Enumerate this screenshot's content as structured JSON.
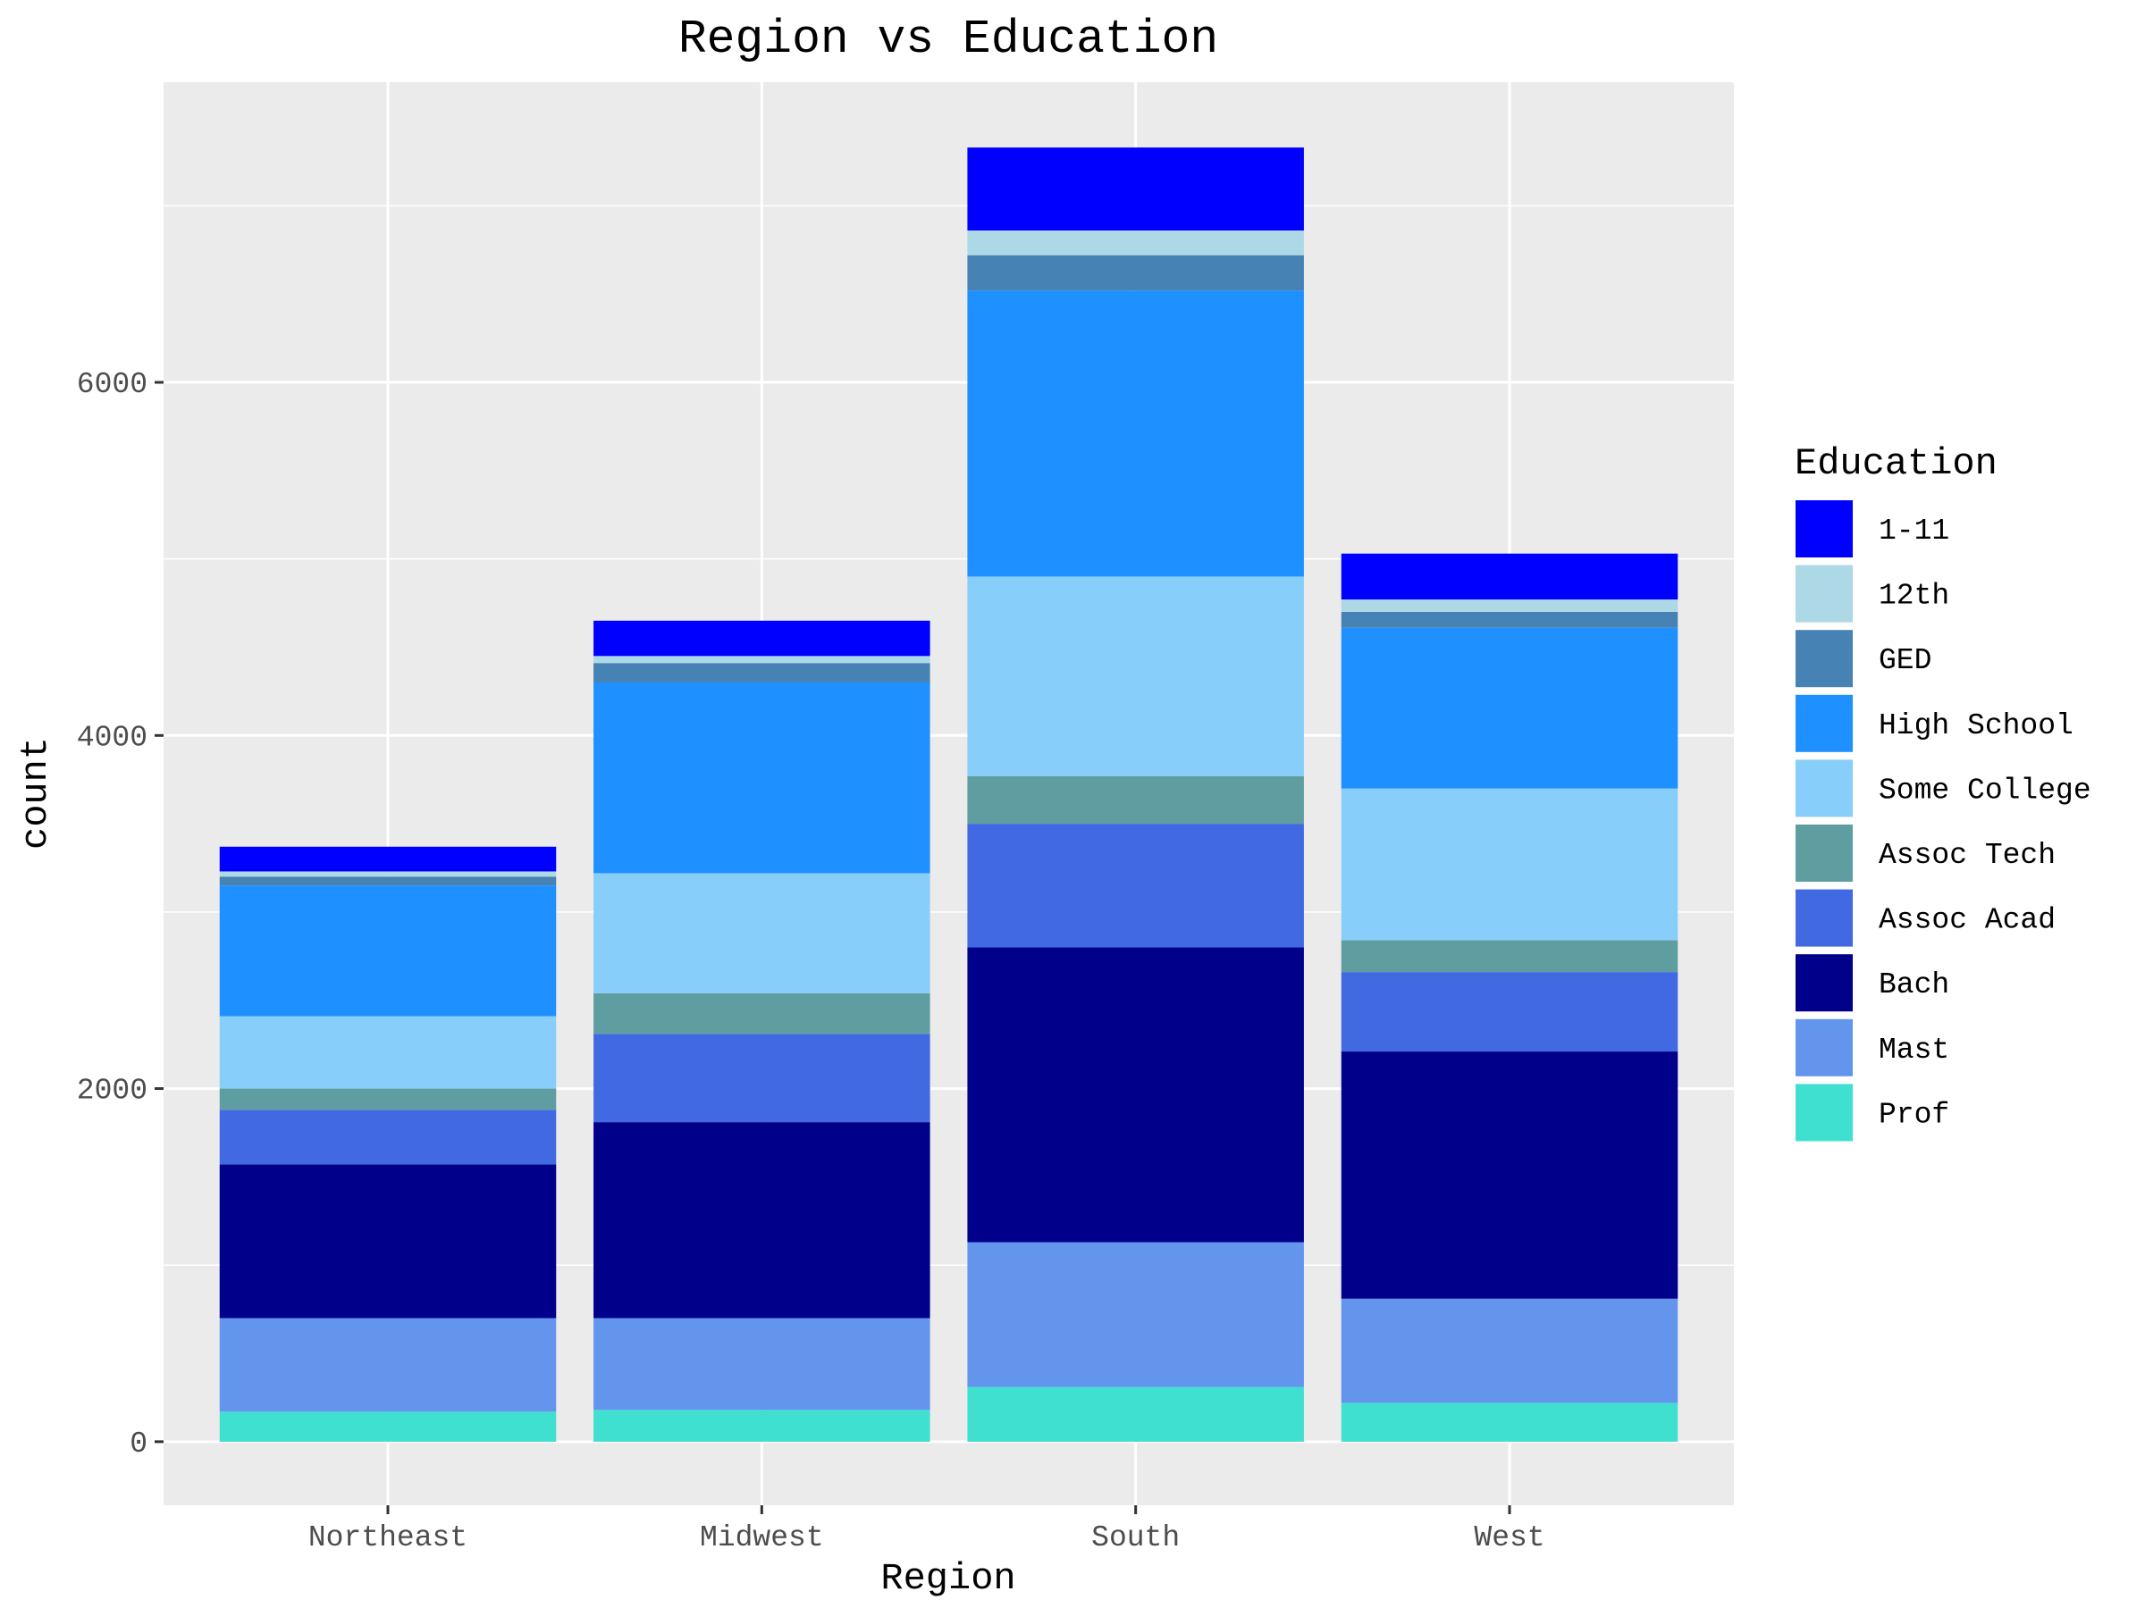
{
  "chart_data": {
    "type": "bar",
    "stacked": true,
    "title": "Region vs Education",
    "xlabel": "Region",
    "ylabel": "count",
    "ylim": [
      -360,
      7700
    ],
    "yticks": [
      0,
      2000,
      4000,
      6000
    ],
    "grid": true,
    "legend_position": "right",
    "legend_title": "Education",
    "categories": [
      "Northeast",
      "Midwest",
      "South",
      "West"
    ],
    "series": [
      {
        "name": "1-11",
        "color": "#0000FF",
        "values": [
          140,
          200,
          470,
          260
        ]
      },
      {
        "name": "12th",
        "color": "#ADD8E6",
        "values": [
          30,
          40,
          140,
          70
        ]
      },
      {
        "name": "GED",
        "color": "#4682B4",
        "values": [
          50,
          110,
          200,
          90
        ]
      },
      {
        "name": "High School",
        "color": "#1E90FF",
        "values": [
          740,
          1080,
          1620,
          910
        ]
      },
      {
        "name": "Some College",
        "color": "#87CEFA",
        "values": [
          410,
          680,
          1130,
          860
        ]
      },
      {
        "name": "Assoc Tech",
        "color": "#5F9EA0",
        "values": [
          120,
          230,
          270,
          180
        ]
      },
      {
        "name": "Assoc Acad",
        "color": "#4169E1",
        "values": [
          310,
          500,
          700,
          450
        ]
      },
      {
        "name": "Bach",
        "color": "#00008B",
        "values": [
          870,
          1110,
          1670,
          1400
        ]
      },
      {
        "name": "Mast",
        "color": "#6495ED",
        "values": [
          530,
          520,
          820,
          590
        ]
      },
      {
        "name": "Prof",
        "color": "#40E0D0",
        "values": [
          170,
          180,
          310,
          220
        ]
      }
    ]
  }
}
